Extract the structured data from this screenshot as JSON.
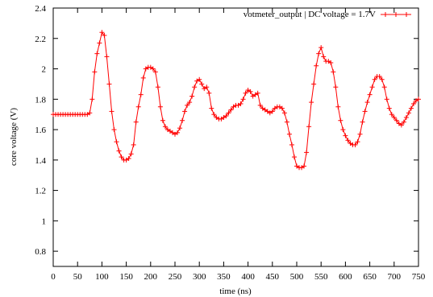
{
  "chart_data": {
    "type": "line",
    "title": "",
    "xlabel": "time (ns)",
    "ylabel": "core voltage (V)",
    "xlim": [
      0,
      750
    ],
    "ylim": [
      0.7,
      2.4
    ],
    "xticks": [
      0,
      50,
      100,
      150,
      200,
      250,
      300,
      350,
      400,
      450,
      500,
      550,
      600,
      650,
      700,
      750
    ],
    "yticks": [
      0.8,
      1,
      1.2,
      1.4,
      1.6,
      1.8,
      2,
      2.2,
      2.4
    ],
    "ytick_labels": [
      "0.8",
      "1",
      "1.2",
      "1.4",
      "1.6",
      "1.8",
      "2",
      "2.2",
      "2.4"
    ],
    "grid": false,
    "legend_position": "top-right",
    "series": [
      {
        "name": "votmeter_output | DC voltage = 1.7V",
        "color": "#ff0000",
        "marker": "plus",
        "x": [
          0,
          5,
          10,
          15,
          20,
          25,
          30,
          35,
          40,
          45,
          50,
          55,
          60,
          65,
          70,
          75,
          80,
          85,
          90,
          95,
          100,
          105,
          110,
          115,
          120,
          125,
          130,
          135,
          140,
          145,
          150,
          155,
          160,
          165,
          170,
          175,
          180,
          185,
          190,
          195,
          200,
          205,
          210,
          215,
          220,
          225,
          230,
          235,
          240,
          245,
          250,
          255,
          260,
          265,
          270,
          275,
          280,
          285,
          290,
          295,
          300,
          305,
          310,
          315,
          320,
          325,
          330,
          335,
          340,
          345,
          350,
          355,
          360,
          365,
          370,
          375,
          380,
          385,
          390,
          395,
          400,
          405,
          410,
          415,
          420,
          425,
          430,
          435,
          440,
          445,
          450,
          455,
          460,
          465,
          470,
          475,
          480,
          485,
          490,
          495,
          500,
          505,
          510,
          515,
          520,
          525,
          530,
          535,
          540,
          545,
          550,
          555,
          560,
          565,
          570,
          575,
          580,
          585,
          590,
          595,
          600,
          605,
          610,
          615,
          620,
          625,
          630,
          635,
          640,
          645,
          650,
          655,
          660,
          665,
          670,
          675,
          680,
          685,
          690,
          695,
          700,
          705,
          710,
          715,
          720,
          725,
          730,
          735,
          740,
          745,
          750
        ],
        "y": [
          1.7,
          1.7,
          1.7,
          1.7,
          1.7,
          1.7,
          1.7,
          1.7,
          1.7,
          1.7,
          1.7,
          1.7,
          1.7,
          1.7,
          1.7,
          1.71,
          1.8,
          1.98,
          2.1,
          2.17,
          2.24,
          2.22,
          2.08,
          1.9,
          1.72,
          1.6,
          1.52,
          1.46,
          1.42,
          1.4,
          1.4,
          1.41,
          1.44,
          1.5,
          1.65,
          1.75,
          1.83,
          1.94,
          2.0,
          2.01,
          2.01,
          2.0,
          1.98,
          1.88,
          1.75,
          1.66,
          1.62,
          1.6,
          1.59,
          1.58,
          1.57,
          1.58,
          1.61,
          1.66,
          1.72,
          1.76,
          1.78,
          1.82,
          1.88,
          1.92,
          1.93,
          1.9,
          1.87,
          1.88,
          1.84,
          1.74,
          1.7,
          1.68,
          1.67,
          1.67,
          1.68,
          1.69,
          1.71,
          1.73,
          1.75,
          1.76,
          1.76,
          1.77,
          1.8,
          1.84,
          1.86,
          1.85,
          1.82,
          1.83,
          1.84,
          1.76,
          1.74,
          1.73,
          1.72,
          1.71,
          1.72,
          1.74,
          1.75,
          1.75,
          1.74,
          1.71,
          1.65,
          1.57,
          1.5,
          1.42,
          1.36,
          1.35,
          1.35,
          1.36,
          1.45,
          1.62,
          1.78,
          1.9,
          2.02,
          2.1,
          2.14,
          2.08,
          2.05,
          2.05,
          2.04,
          1.98,
          1.88,
          1.75,
          1.66,
          1.6,
          1.56,
          1.53,
          1.51,
          1.5,
          1.5,
          1.52,
          1.57,
          1.65,
          1.72,
          1.78,
          1.83,
          1.88,
          1.93,
          1.95,
          1.95,
          1.93,
          1.88,
          1.8,
          1.74,
          1.7,
          1.68,
          1.66,
          1.64,
          1.63,
          1.65,
          1.68,
          1.71,
          1.74,
          1.77,
          1.79,
          1.8
        ]
      }
    ]
  }
}
